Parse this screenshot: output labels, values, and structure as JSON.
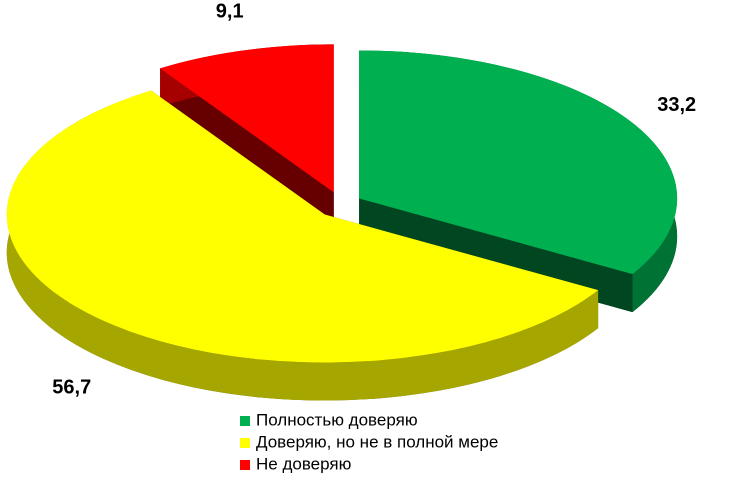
{
  "chart_data": {
    "type": "pie",
    "categories": [
      "Полностью доверяю",
      "Доверяю, но не в полной мере",
      "Не доверяю"
    ],
    "values": [
      33.2,
      56.7,
      9.1
    ],
    "value_labels": [
      "33,2",
      "56,7",
      "9,1"
    ],
    "colors": [
      "#00b050",
      "#ffff00",
      "#ff0000"
    ],
    "legend": "bottom"
  }
}
